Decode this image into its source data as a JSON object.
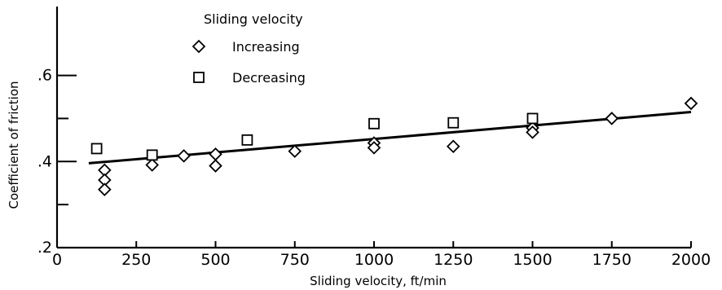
{
  "chart_data": {
    "type": "scatter",
    "title": "",
    "xlabel": "Sliding velocity, ft/min",
    "ylabel": "Coefficient of friction",
    "xlim": [
      0,
      2000
    ],
    "ylim": [
      0.2,
      0.76
    ],
    "x_ticks": [
      0,
      250,
      500,
      750,
      1000,
      1250,
      1500,
      1750,
      2000
    ],
    "x_tick_labels": [
      "0",
      "250",
      "500",
      "750",
      "1000",
      "1250",
      "1500",
      "1750",
      "2000"
    ],
    "y_ticks": [
      0.2,
      0.4,
      0.6
    ],
    "y_tick_labels": [
      ".2",
      ".4",
      ".6"
    ],
    "y_minor_ticks": [
      0.3,
      0.5
    ],
    "grid": false,
    "legend": {
      "title": "Sliding velocity",
      "placement": "top-center"
    },
    "series": [
      {
        "name": "Increasing",
        "marker": "diamond",
        "points": [
          {
            "x": 150,
            "y": 0.38
          },
          {
            "x": 150,
            "y": 0.357
          },
          {
            "x": 150,
            "y": 0.335
          },
          {
            "x": 300,
            "y": 0.392
          },
          {
            "x": 400,
            "y": 0.413
          },
          {
            "x": 500,
            "y": 0.417
          },
          {
            "x": 500,
            "y": 0.39
          },
          {
            "x": 750,
            "y": 0.424
          },
          {
            "x": 1000,
            "y": 0.443
          },
          {
            "x": 1000,
            "y": 0.432
          },
          {
            "x": 1250,
            "y": 0.435
          },
          {
            "x": 1500,
            "y": 0.478
          },
          {
            "x": 1500,
            "y": 0.468
          },
          {
            "x": 1750,
            "y": 0.5
          },
          {
            "x": 2000,
            "y": 0.535
          }
        ]
      },
      {
        "name": "Decreasing",
        "marker": "square",
        "points": [
          {
            "x": 125,
            "y": 0.43
          },
          {
            "x": 300,
            "y": 0.415
          },
          {
            "x": 600,
            "y": 0.45
          },
          {
            "x": 1000,
            "y": 0.488
          },
          {
            "x": 1250,
            "y": 0.49
          },
          {
            "x": 1500,
            "y": 0.5
          }
        ]
      }
    ],
    "fit_line": {
      "x": [
        100,
        2000
      ],
      "y": [
        0.396,
        0.515
      ]
    }
  }
}
